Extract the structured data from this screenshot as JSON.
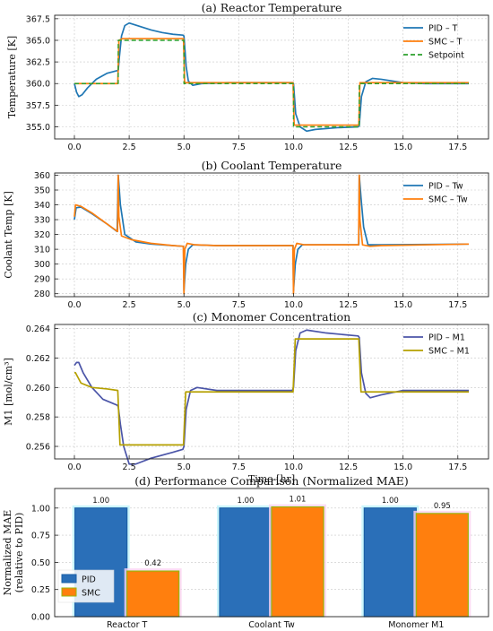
{
  "chart_data": [
    {
      "type": "line",
      "title": "(a) Reactor Temperature",
      "xlabel": "",
      "ylabel": "Temperature [K]",
      "xlim": [
        -0.9,
        18.9
      ],
      "ylim": [
        353.6,
        367.9
      ],
      "xticks": [
        0.0,
        2.5,
        5.0,
        7.5,
        10.0,
        12.5,
        15.0,
        17.5
      ],
      "yticks": [
        355.0,
        357.5,
        360.0,
        362.5,
        365.0,
        367.5
      ],
      "grid": true,
      "legend_position": "top-right",
      "series": [
        {
          "name": "PID – T",
          "color": "#1f77b4",
          "dash": "solid",
          "points": [
            [
              0,
              360.0
            ],
            [
              0.1,
              359.0
            ],
            [
              0.2,
              358.5
            ],
            [
              0.35,
              358.7
            ],
            [
              0.6,
              359.5
            ],
            [
              1.0,
              360.5
            ],
            [
              1.5,
              361.2
            ],
            [
              1.95,
              361.5
            ],
            [
              2.0,
              361.5
            ],
            [
              2.05,
              363.0
            ],
            [
              2.15,
              365.5
            ],
            [
              2.3,
              366.7
            ],
            [
              2.5,
              367.0
            ],
            [
              3.0,
              366.6
            ],
            [
              3.5,
              366.2
            ],
            [
              4.0,
              365.9
            ],
            [
              4.5,
              365.7
            ],
            [
              4.95,
              365.6
            ],
            [
              5.0,
              365.5
            ],
            [
              5.1,
              362.0
            ],
            [
              5.2,
              360.3
            ],
            [
              5.4,
              359.8
            ],
            [
              5.8,
              360.0
            ],
            [
              7,
              360.1
            ],
            [
              9.95,
              360.1
            ],
            [
              10.0,
              360.0
            ],
            [
              10.1,
              356.5
            ],
            [
              10.3,
              355.0
            ],
            [
              10.6,
              354.5
            ],
            [
              11.0,
              354.7
            ],
            [
              12.0,
              354.9
            ],
            [
              12.95,
              355.0
            ],
            [
              13.0,
              355.1
            ],
            [
              13.1,
              358.5
            ],
            [
              13.3,
              360.2
            ],
            [
              13.6,
              360.6
            ],
            [
              14.0,
              360.5
            ],
            [
              15,
              360.1
            ],
            [
              16,
              360.0
            ],
            [
              18,
              360.0
            ]
          ]
        },
        {
          "name": "SMC – T",
          "color": "#ff7f0e",
          "dash": "solid",
          "points": [
            [
              0,
              360.0
            ],
            [
              1.98,
              360.0
            ],
            [
              2.03,
              365.0
            ],
            [
              2.2,
              365.2
            ],
            [
              4.98,
              365.2
            ],
            [
              5.03,
              360.1
            ],
            [
              9.98,
              360.1
            ],
            [
              10.03,
              355.2
            ],
            [
              12.98,
              355.2
            ],
            [
              13.03,
              360.1
            ],
            [
              18,
              360.1
            ]
          ]
        },
        {
          "name": "Setpoint",
          "color": "#2ca02c",
          "dash": "dashed",
          "points": [
            [
              0,
              360.0
            ],
            [
              2,
              360.0
            ],
            [
              2,
              365.0
            ],
            [
              5,
              365.0
            ],
            [
              5,
              360.0
            ],
            [
              10,
              360.0
            ],
            [
              10,
              355.0
            ],
            [
              13,
              355.0
            ],
            [
              13,
              360.0
            ],
            [
              18,
              360.0
            ]
          ]
        }
      ]
    },
    {
      "type": "line",
      "title": "(b) Coolant Temperature",
      "xlabel": "",
      "ylabel": "Coolant Temp [K]",
      "xlim": [
        -0.9,
        18.9
      ],
      "ylim": [
        278.0,
        361.5
      ],
      "xticks": [
        0.0,
        2.5,
        5.0,
        7.5,
        10.0,
        12.5,
        15.0,
        17.5
      ],
      "yticks": [
        280,
        290,
        300,
        310,
        320,
        330,
        340,
        350,
        360
      ],
      "grid": true,
      "legend_position": "top-right",
      "series": [
        {
          "name": "PID – Tw",
          "color": "#1f77b4",
          "dash": "solid",
          "points": [
            [
              0,
              330
            ],
            [
              0.08,
              338
            ],
            [
              0.3,
              338.5
            ],
            [
              0.8,
              334
            ],
            [
              1.5,
              327
            ],
            [
              1.95,
              322
            ],
            [
              2.0,
              360
            ],
            [
              2.1,
              340
            ],
            [
              2.3,
              320
            ],
            [
              2.8,
              315
            ],
            [
              3.5,
              313.5
            ],
            [
              4.5,
              312.5
            ],
            [
              4.98,
              312.0
            ],
            [
              5.0,
              282
            ],
            [
              5.08,
              300
            ],
            [
              5.2,
              310
            ],
            [
              5.4,
              313
            ],
            [
              6.5,
              312.5
            ],
            [
              9.98,
              312.5
            ],
            [
              10.0,
              282
            ],
            [
              10.08,
              300
            ],
            [
              10.2,
              310
            ],
            [
              10.4,
              313
            ],
            [
              11,
              313
            ],
            [
              12.98,
              313.0
            ],
            [
              13.0,
              360
            ],
            [
              13.08,
              345
            ],
            [
              13.2,
              325
            ],
            [
              13.4,
              313
            ],
            [
              14,
              313
            ],
            [
              18,
              313.5
            ]
          ]
        },
        {
          "name": "SMC – Tw",
          "color": "#ff7f0e",
          "dash": "solid",
          "points": [
            [
              0,
              332
            ],
            [
              0.05,
              340
            ],
            [
              0.3,
              339
            ],
            [
              0.8,
              334.5
            ],
            [
              1.5,
              327
            ],
            [
              1.97,
              322
            ],
            [
              2.0,
              360
            ],
            [
              2.03,
              332
            ],
            [
              2.15,
              319
            ],
            [
              2.6,
              316.5
            ],
            [
              3.5,
              314
            ],
            [
              4.5,
              312.5
            ],
            [
              4.97,
              312.0
            ],
            [
              5.0,
              280
            ],
            [
              5.04,
              310
            ],
            [
              5.15,
              314
            ],
            [
              5.5,
              313
            ],
            [
              6.5,
              312.5
            ],
            [
              9.97,
              312.5
            ],
            [
              10.0,
              280
            ],
            [
              10.04,
              310
            ],
            [
              10.15,
              314
            ],
            [
              10.5,
              313
            ],
            [
              12.97,
              313.0
            ],
            [
              13.0,
              360
            ],
            [
              13.03,
              330
            ],
            [
              13.15,
              313
            ],
            [
              13.5,
              312
            ],
            [
              14,
              312.5
            ],
            [
              18,
              313.5
            ]
          ]
        }
      ]
    },
    {
      "type": "line",
      "title": "(c) Monomer Concentration",
      "xlabel": "Time [hr]",
      "ylabel": "M1 [mol/cm³]",
      "xlim": [
        -0.9,
        18.9
      ],
      "ylim": [
        0.25515,
        0.26428
      ],
      "xticks": [
        0.0,
        2.5,
        5.0,
        7.5,
        10.0,
        12.5,
        15.0,
        17.5
      ],
      "yticks": [
        0.256,
        0.258,
        0.26,
        0.262,
        0.264
      ],
      "grid": true,
      "legend_position": "top-right",
      "series": [
        {
          "name": "PID – M1",
          "color": "#4b55a8",
          "dash": "solid",
          "points": [
            [
              0,
              0.2615
            ],
            [
              0.1,
              0.2617
            ],
            [
              0.2,
              0.2617
            ],
            [
              0.4,
              0.261
            ],
            [
              0.8,
              0.26
            ],
            [
              1.3,
              0.2592
            ],
            [
              1.95,
              0.2588
            ],
            [
              2.0,
              0.2587
            ],
            [
              2.1,
              0.2575
            ],
            [
              2.25,
              0.256
            ],
            [
              2.5,
              0.2548
            ],
            [
              2.8,
              0.2548
            ],
            [
              3.5,
              0.2552
            ],
            [
              4.5,
              0.2556
            ],
            [
              4.95,
              0.2558
            ],
            [
              5.0,
              0.256
            ],
            [
              5.1,
              0.2585
            ],
            [
              5.3,
              0.2598
            ],
            [
              5.6,
              0.26
            ],
            [
              6.5,
              0.2598
            ],
            [
              9.95,
              0.2598
            ],
            [
              10.0,
              0.26
            ],
            [
              10.1,
              0.2625
            ],
            [
              10.3,
              0.2637
            ],
            [
              10.6,
              0.2639
            ],
            [
              11.5,
              0.2637
            ],
            [
              12.95,
              0.2635
            ],
            [
              13.0,
              0.2634
            ],
            [
              13.1,
              0.261
            ],
            [
              13.3,
              0.2596
            ],
            [
              13.5,
              0.2593
            ],
            [
              14.0,
              0.2595
            ],
            [
              15,
              0.2598
            ],
            [
              18,
              0.2598
            ]
          ]
        },
        {
          "name": "SMC – M1",
          "color": "#b5a000",
          "dash": "solid",
          "points": [
            [
              0,
              0.261
            ],
            [
              0.05,
              0.261
            ],
            [
              0.3,
              0.2603
            ],
            [
              0.8,
              0.26
            ],
            [
              1.5,
              0.2599
            ],
            [
              1.98,
              0.2598
            ],
            [
              2.08,
              0.2561
            ],
            [
              4.98,
              0.2561
            ],
            [
              5.08,
              0.2597
            ],
            [
              9.98,
              0.2597
            ],
            [
              10.08,
              0.2633
            ],
            [
              12.98,
              0.2633
            ],
            [
              13.08,
              0.2597
            ],
            [
              18,
              0.2597
            ]
          ]
        }
      ]
    },
    {
      "type": "bar",
      "title": "(d) Performance Comparison (Normalized MAE)",
      "xlabel": "",
      "ylabel": "Normalized MAE",
      "ylabel2": "(relative to PID)",
      "ylim": [
        0.0,
        1.18
      ],
      "yticks": [
        0.0,
        0.25,
        0.5,
        0.75,
        1.0
      ],
      "grid": true,
      "legend_position": "bottom-left",
      "categories": [
        "Reactor T",
        "Coolant Tw",
        "Monomer M1"
      ],
      "series": [
        {
          "name": "PID",
          "color": "#2a6fb8",
          "values": [
            1.0,
            1.0,
            1.0
          ],
          "labels": [
            "1.00",
            "1.00",
            "1.00"
          ]
        },
        {
          "name": "SMC",
          "color": "#ff7f0e",
          "values": [
            0.42,
            1.01,
            0.95
          ],
          "labels": [
            "0.42",
            "1.01",
            "0.95"
          ]
        }
      ]
    }
  ]
}
